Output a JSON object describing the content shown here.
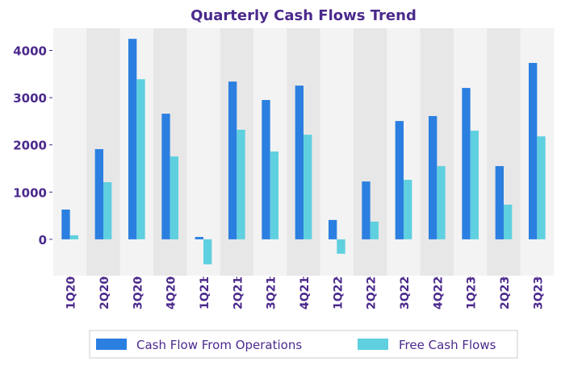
{
  "chart_data": {
    "type": "bar",
    "title": "Quarterly Cash Flows Trend",
    "xlabel": "",
    "ylabel": "",
    "ylim": [
      -770,
      4470
    ],
    "yticks": [
      0,
      1000,
      2000,
      3000,
      4000
    ],
    "ytick_labels": [
      "0",
      "1000",
      "2000",
      "3000",
      "4000"
    ],
    "grid": false,
    "legend_position": "bottom-center",
    "categories": [
      "1Q20",
      "2Q20",
      "3Q20",
      "4Q20",
      "1Q21",
      "2Q21",
      "3Q21",
      "4Q21",
      "1Q22",
      "2Q22",
      "3Q22",
      "4Q22",
      "1Q23",
      "2Q23",
      "3Q23"
    ],
    "series": [
      {
        "name": "Cash Flow From Operations",
        "color": "#2b7fe0",
        "values": [
          630,
          1910,
          4245,
          2660,
          50,
          3340,
          2950,
          3255,
          410,
          1225,
          2505,
          2610,
          3205,
          1550,
          3735
        ]
      },
      {
        "name": "Free Cash Flows",
        "color": "#5fd0df",
        "values": [
          85,
          1210,
          3390,
          1755,
          -530,
          2320,
          1860,
          2215,
          -305,
          375,
          1260,
          1550,
          2300,
          735,
          2180
        ]
      }
    ],
    "band_colors": [
      "#f3f3f3",
      "#e7e7e7"
    ],
    "text_color": "#4b2a8c"
  }
}
